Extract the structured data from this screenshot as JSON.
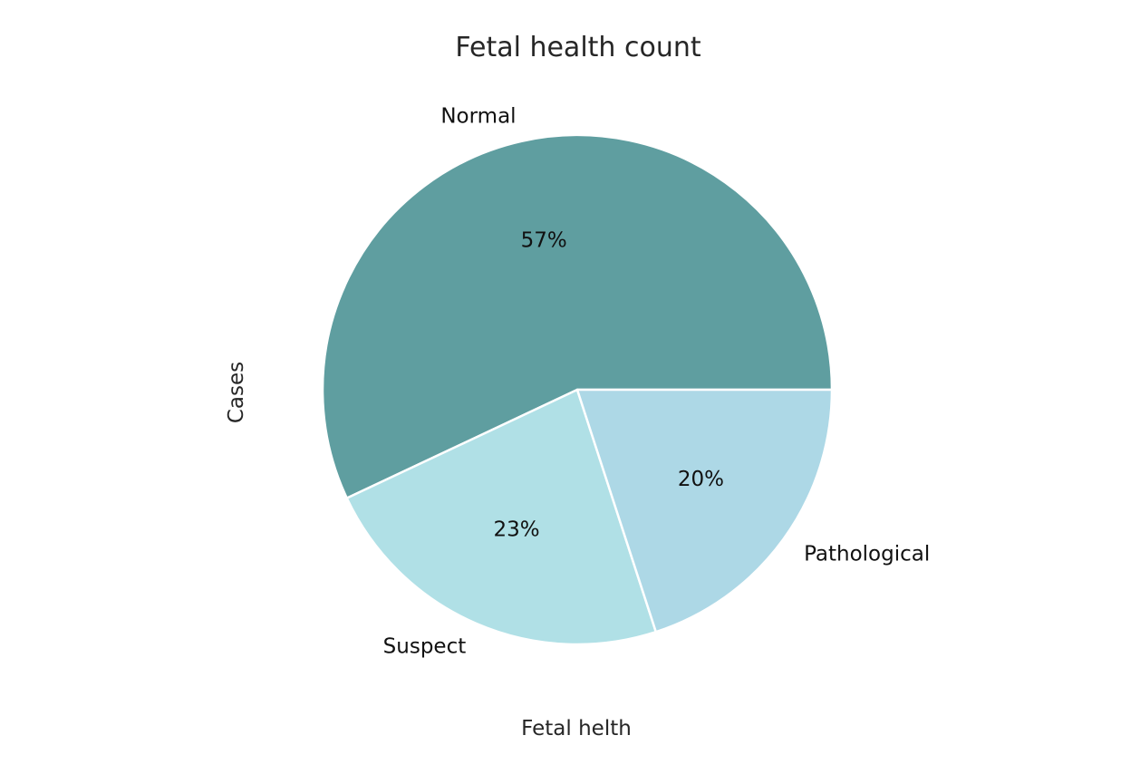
{
  "chart_data": {
    "type": "pie",
    "title": "Fetal health count",
    "xlabel": "Fetal helth",
    "ylabel": "Cases",
    "categories": [
      "Normal",
      "Suspect",
      "Pathological"
    ],
    "values": [
      57,
      23,
      20
    ],
    "value_labels": [
      "57%",
      "23%",
      "20%"
    ],
    "colors": [
      "#5f9ea0",
      "#b0e0e6",
      "#add8e6"
    ],
    "wedge_edge_color": "#ffffff",
    "start_angle_deg": 0,
    "direction": "counterclockwise"
  }
}
